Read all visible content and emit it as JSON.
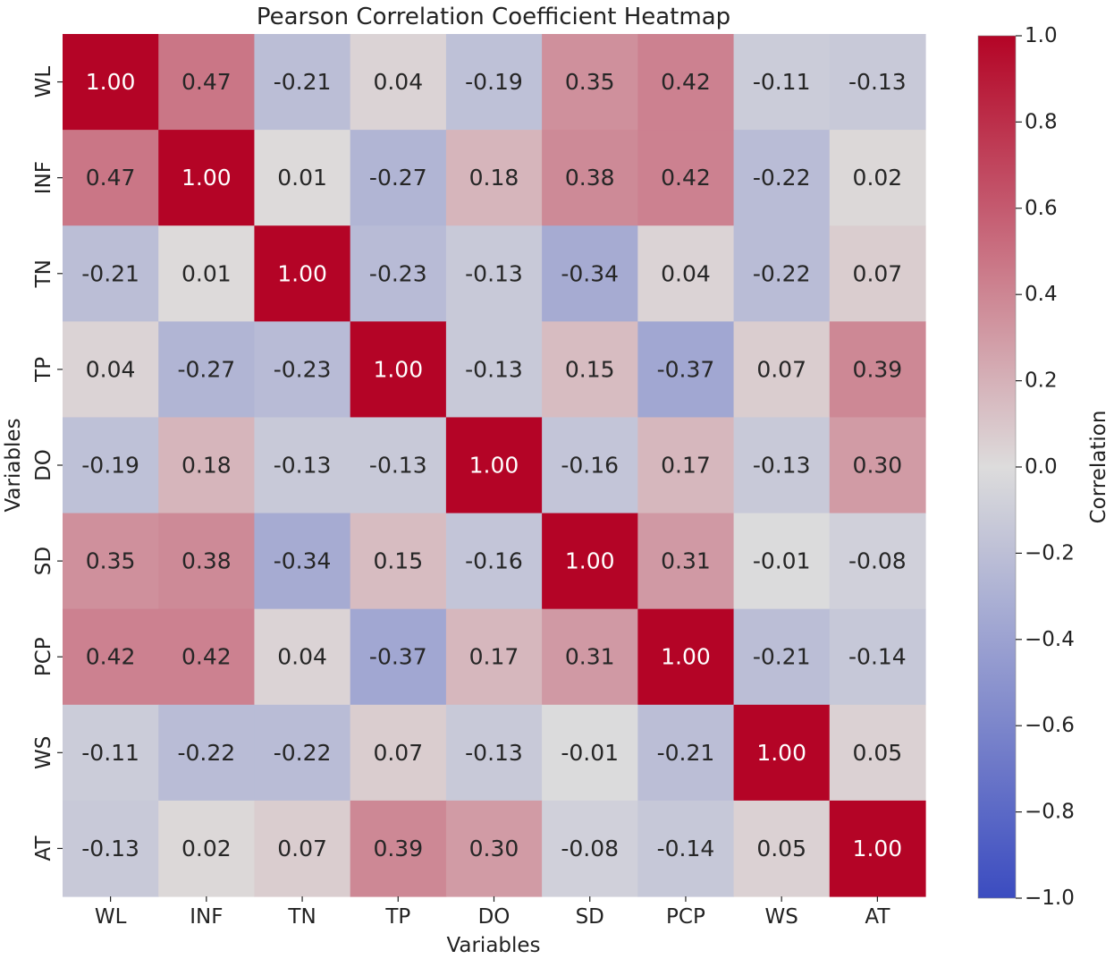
{
  "chart_data": {
    "type": "heatmap",
    "title": "Pearson Correlation Coefficient Heatmap",
    "xlabel": "Variables",
    "ylabel": "Variables",
    "x_categories": [
      "WL",
      "INF",
      "TN",
      "TP",
      "DO",
      "SD",
      "PCP",
      "WS",
      "AT"
    ],
    "y_categories": [
      "WL",
      "INF",
      "TN",
      "TP",
      "DO",
      "SD",
      "PCP",
      "WS",
      "AT"
    ],
    "values": [
      [
        1.0,
        0.47,
        -0.21,
        0.04,
        -0.19,
        0.35,
        0.42,
        -0.11,
        -0.13
      ],
      [
        0.47,
        1.0,
        0.01,
        -0.27,
        0.18,
        0.38,
        0.42,
        -0.22,
        0.02
      ],
      [
        -0.21,
        0.01,
        1.0,
        -0.23,
        -0.13,
        -0.34,
        0.04,
        -0.22,
        0.07
      ],
      [
        0.04,
        -0.27,
        -0.23,
        1.0,
        -0.13,
        0.15,
        -0.37,
        0.07,
        0.39
      ],
      [
        -0.19,
        0.18,
        -0.13,
        -0.13,
        1.0,
        -0.16,
        0.17,
        -0.13,
        0.3
      ],
      [
        0.35,
        0.38,
        -0.34,
        0.15,
        -0.16,
        1.0,
        0.31,
        -0.01,
        -0.08
      ],
      [
        0.42,
        0.42,
        0.04,
        -0.37,
        0.17,
        0.31,
        1.0,
        -0.21,
        -0.14
      ],
      [
        -0.11,
        -0.22,
        -0.22,
        0.07,
        -0.13,
        -0.01,
        -0.21,
        1.0,
        0.05
      ],
      [
        -0.13,
        0.02,
        0.07,
        0.39,
        0.3,
        -0.08,
        -0.14,
        0.05,
        1.0
      ]
    ],
    "value_format_decimals": 2,
    "colormap": "coolwarm",
    "colormap_stops": [
      "#3b4cc0",
      "#dddcdc",
      "#b40426"
    ],
    "vmin": -1.0,
    "vmax": 1.0,
    "colorbar": {
      "label": "Correlation",
      "ticks": [
        1.0,
        0.8,
        0.6,
        0.4,
        0.2,
        0.0,
        -0.2,
        -0.4,
        -0.6,
        -0.8,
        -1.0
      ],
      "tick_labels": [
        "1.0",
        "0.8",
        "0.6",
        "0.4",
        "0.2",
        "0.0",
        "−0.2",
        "−0.4",
        "−0.6",
        "−0.8",
        "−1.0"
      ]
    }
  }
}
